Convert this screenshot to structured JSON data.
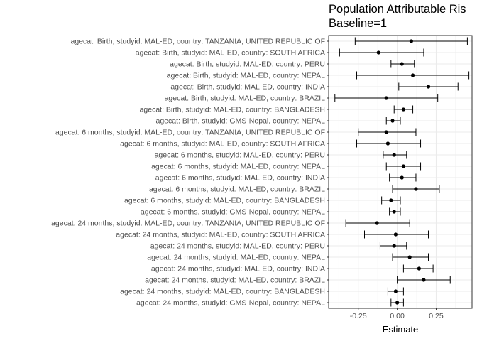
{
  "chart_data": {
    "type": "forest",
    "title_line1": "Population Attributable Ris",
    "title_line2": "Baseline=1",
    "xlabel": "Estimate",
    "ylabel": "",
    "xlim": [
      -0.44,
      0.48
    ],
    "xticks": [
      -0.25,
      0.0,
      0.25
    ],
    "xtick_labels": [
      "-0.25",
      "0.00",
      "0.25"
    ],
    "grid": true,
    "points": [
      {
        "label": "agecat: Birth, studyid: MAL-ED, country: TANZANIA, UNITED REPUBLIC OF",
        "estimate": 0.09,
        "lower": -0.27,
        "upper": 0.45
      },
      {
        "label": "agecat: Birth, studyid: MAL-ED, country: SOUTH AFRICA",
        "estimate": -0.12,
        "lower": -0.37,
        "upper": 0.17
      },
      {
        "label": "agecat: Birth, studyid: MAL-ED, country: PERU",
        "estimate": 0.03,
        "lower": -0.04,
        "upper": 0.11
      },
      {
        "label": "agecat: Birth, studyid: MAL-ED, country: NEPAL",
        "estimate": 0.1,
        "lower": -0.26,
        "upper": 0.46
      },
      {
        "label": "agecat: Birth, studyid: MAL-ED, country: INDIA",
        "estimate": 0.2,
        "lower": 0.01,
        "upper": 0.39
      },
      {
        "label": "agecat: Birth, studyid: MAL-ED, country: BRAZIL",
        "estimate": -0.07,
        "lower": -0.4,
        "upper": 0.26
      },
      {
        "label": "agecat: Birth, studyid: MAL-ED, country: BANGLADESH",
        "estimate": 0.04,
        "lower": -0.02,
        "upper": 0.1
      },
      {
        "label": "agecat: Birth, studyid: GMS-Nepal, country: NEPAL",
        "estimate": -0.03,
        "lower": -0.07,
        "upper": 0.02
      },
      {
        "label": "agecat: 6 months, studyid: MAL-ED, country: TANZANIA, UNITED REPUBLIC OF",
        "estimate": -0.07,
        "lower": -0.25,
        "upper": 0.12
      },
      {
        "label": "agecat: 6 months, studyid: MAL-ED, country: SOUTH AFRICA",
        "estimate": -0.06,
        "lower": -0.26,
        "upper": 0.15
      },
      {
        "label": "agecat: 6 months, studyid: MAL-ED, country: PERU",
        "estimate": -0.02,
        "lower": -0.09,
        "upper": 0.06
      },
      {
        "label": "agecat: 6 months, studyid: MAL-ED, country: NEPAL",
        "estimate": 0.04,
        "lower": -0.07,
        "upper": 0.15
      },
      {
        "label": "agecat: 6 months, studyid: MAL-ED, country: INDIA",
        "estimate": 0.03,
        "lower": -0.05,
        "upper": 0.12
      },
      {
        "label": "agecat: 6 months, studyid: MAL-ED, country: BRAZIL",
        "estimate": 0.12,
        "lower": -0.03,
        "upper": 0.27
      },
      {
        "label": "agecat: 6 months, studyid: MAL-ED, country: BANGLADESH",
        "estimate": -0.04,
        "lower": -0.1,
        "upper": 0.02
      },
      {
        "label": "agecat: 6 months, studyid: GMS-Nepal, country: NEPAL",
        "estimate": -0.02,
        "lower": -0.05,
        "upper": 0.02
      },
      {
        "label": "agecat: 24 months, studyid: MAL-ED, country: TANZANIA, UNITED REPUBLIC OF",
        "estimate": -0.13,
        "lower": -0.33,
        "upper": 0.08
      },
      {
        "label": "agecat: 24 months, studyid: MAL-ED, country: SOUTH AFRICA",
        "estimate": -0.01,
        "lower": -0.21,
        "upper": 0.2
      },
      {
        "label": "agecat: 24 months, studyid: MAL-ED, country: PERU",
        "estimate": -0.02,
        "lower": -0.11,
        "upper": 0.06
      },
      {
        "label": "agecat: 24 months, studyid: MAL-ED, country: NEPAL",
        "estimate": 0.08,
        "lower": -0.03,
        "upper": 0.2
      },
      {
        "label": "agecat: 24 months, studyid: MAL-ED, country: INDIA",
        "estimate": 0.14,
        "lower": 0.04,
        "upper": 0.23
      },
      {
        "label": "agecat: 24 months, studyid: MAL-ED, country: BRAZIL",
        "estimate": 0.17,
        "lower": 0.0,
        "upper": 0.34
      },
      {
        "label": "agecat: 24 months, studyid: MAL-ED, country: BANGLADESH",
        "estimate": -0.01,
        "lower": -0.06,
        "upper": 0.04
      },
      {
        "label": "agecat: 24 months, studyid: GMS-Nepal, country: NEPAL",
        "estimate": 0.0,
        "lower": -0.04,
        "upper": 0.04
      }
    ]
  }
}
